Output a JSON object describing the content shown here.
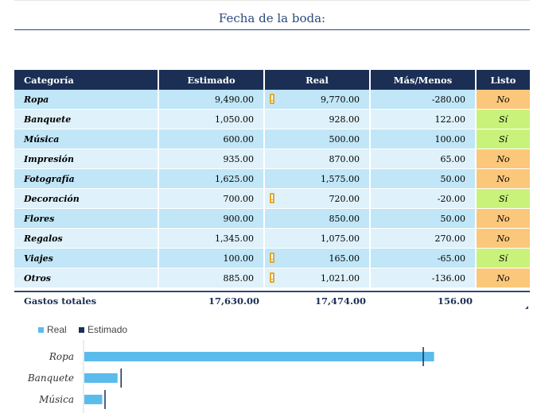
{
  "header": {
    "wedding_date_label": "Fecha de la boda:"
  },
  "table": {
    "columns": [
      "Categoría",
      "Estimado",
      "Real",
      "Más/Menos",
      "Listo"
    ],
    "rows": [
      {
        "categoria": "Ropa",
        "estimado": "9,490.00",
        "real": "9,770.00",
        "mas_menos": "-280.00",
        "listo": "No",
        "warning": true
      },
      {
        "categoria": "Banquete",
        "estimado": "1,050.00",
        "real": "928.00",
        "mas_menos": "122.00",
        "listo": "Sí",
        "warning": false
      },
      {
        "categoria": "Música",
        "estimado": "600.00",
        "real": "500.00",
        "mas_menos": "100.00",
        "listo": "Sí",
        "warning": false
      },
      {
        "categoria": "Impresión",
        "estimado": "935.00",
        "real": "870.00",
        "mas_menos": "65.00",
        "listo": "No",
        "warning": false
      },
      {
        "categoria": "Fotografía",
        "estimado": "1,625.00",
        "real": "1,575.00",
        "mas_menos": "50.00",
        "listo": "No",
        "warning": false
      },
      {
        "categoria": "Decoración",
        "estimado": "700.00",
        "real": "720.00",
        "mas_menos": "-20.00",
        "listo": "Sí",
        "warning": true
      },
      {
        "categoria": "Flores",
        "estimado": "900.00",
        "real": "850.00",
        "mas_menos": "50.00",
        "listo": "No",
        "warning": false
      },
      {
        "categoria": "Regalos",
        "estimado": "1,345.00",
        "real": "1,075.00",
        "mas_menos": "270.00",
        "listo": "No",
        "warning": false
      },
      {
        "categoria": "Viajes",
        "estimado": "100.00",
        "real": "165.00",
        "mas_menos": "-65.00",
        "listo": "Sí",
        "warning": true
      },
      {
        "categoria": "Otros",
        "estimado": "885.00",
        "real": "1,021.00",
        "mas_menos": "-136.00",
        "listo": "No",
        "warning": true
      }
    ],
    "totals": {
      "label": "Gastos totales",
      "estimado": "17,630.00",
      "real": "17,474.00",
      "mas_menos": "156.00"
    }
  },
  "colors": {
    "header_bg": "#1b2f55",
    "row_odd": "#c0e6f7",
    "row_even": "#dff1fa",
    "listo_no": "#fbc77a",
    "listo_si": "#c9f27a",
    "warning": "#e3a92b",
    "bar_real": "#5bbcec",
    "marker_estimado": "#1b2f55"
  },
  "chart_data": {
    "type": "bar",
    "orientation": "horizontal",
    "categories": [
      "Ropa",
      "Banquete",
      "Música"
    ],
    "series": [
      {
        "name": "Real",
        "values": [
          9770,
          928,
          500
        ]
      },
      {
        "name": "Estimado",
        "values": [
          9490,
          1050,
          600
        ]
      }
    ],
    "legend": {
      "position": "top-left",
      "labels": [
        "Real",
        "Estimado"
      ]
    },
    "xlim": [
      0,
      12000
    ]
  }
}
